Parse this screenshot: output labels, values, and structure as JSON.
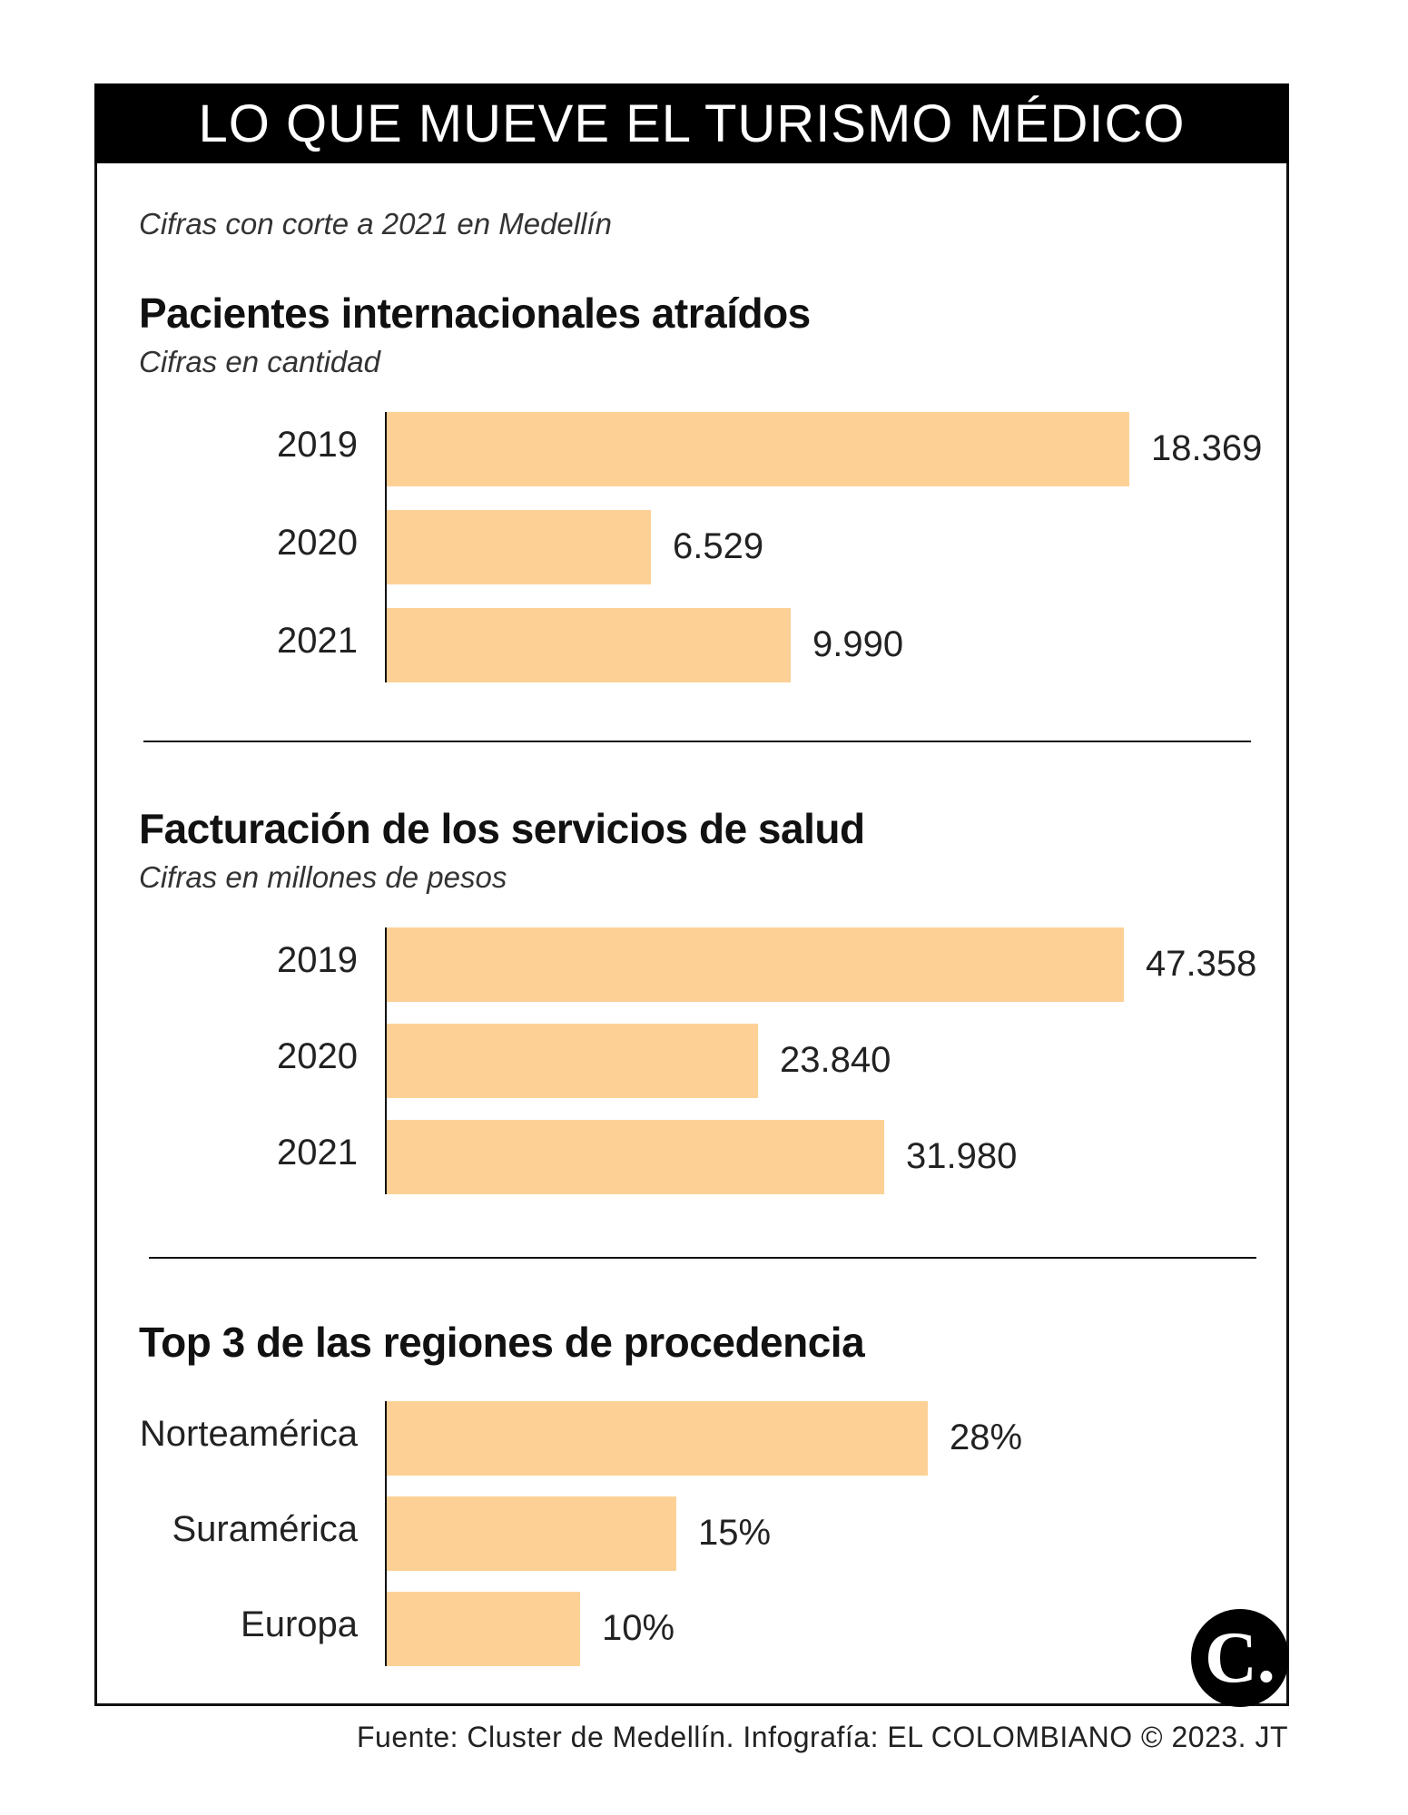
{
  "title": "LO QUE MUEVE EL TURISMO MÉDICO",
  "subtitle": "Cifras con corte a 2021 en Medellín",
  "source": "Fuente: Cluster de Medellín. Infografía: EL COLOMBIANO © 2023. JT",
  "logo_text": "C.",
  "colors": {
    "bar": "#fdd195",
    "title_bg": "#000000",
    "title_text": "#ffffff"
  },
  "chart_data": [
    {
      "type": "bar",
      "orientation": "horizontal",
      "title": "Pacientes internacionales atraídos",
      "subtitle": "Cifras en cantidad",
      "categories": [
        "2019",
        "2020",
        "2021"
      ],
      "values": [
        18369,
        6529,
        9990
      ],
      "value_labels": [
        "18.369",
        "6.529",
        "9.990"
      ],
      "xlim": [
        0,
        18369
      ]
    },
    {
      "type": "bar",
      "orientation": "horizontal",
      "title": "Facturación de los servicios de salud",
      "subtitle": "Cifras en millones de pesos",
      "categories": [
        "2019",
        "2020",
        "2021"
      ],
      "values": [
        47358,
        23840,
        31980
      ],
      "value_labels": [
        "47.358",
        "23.840",
        "31.980"
      ],
      "xlim": [
        0,
        47358
      ]
    },
    {
      "type": "bar",
      "orientation": "horizontal",
      "title": "Top 3 de las regiones de procedencia",
      "subtitle": "",
      "categories": [
        "Norteamérica",
        "Suramérica",
        "Europa"
      ],
      "values": [
        28,
        15,
        10
      ],
      "value_labels": [
        "28%",
        "15%",
        "10%"
      ],
      "xlim": [
        0,
        47
      ]
    }
  ]
}
